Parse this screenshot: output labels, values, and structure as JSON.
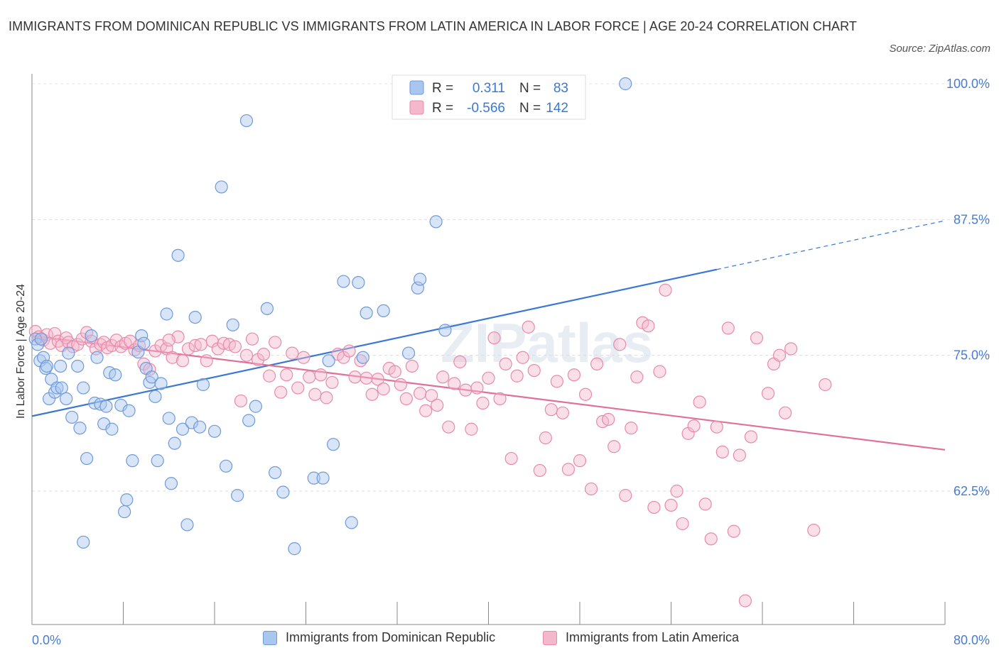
{
  "header": {
    "title": "IMMIGRANTS FROM DOMINICAN REPUBLIC VS IMMIGRANTS FROM LATIN AMERICA IN LABOR FORCE | AGE 20-24 CORRELATION CHART",
    "source": "Source: ZipAtlas.com"
  },
  "legend_top": {
    "rows": [
      {
        "r_label": "R =",
        "r_value": "0.311",
        "n_label": "N =",
        "n_value": "83"
      },
      {
        "r_label": "R =",
        "r_value": "-0.566",
        "n_label": "N =",
        "n_value": "142"
      }
    ]
  },
  "watermark": "ZIPatlas",
  "colors": {
    "blue_fill": "#a9c6ef",
    "blue_stroke": "#6f9ad8",
    "blue_line": "#3a78d4",
    "pink_fill": "#f4b8cd",
    "pink_stroke": "#e88aab",
    "pink_line": "#e0709a",
    "axis_text": "#4a7bd0"
  },
  "chart_data": {
    "type": "scatter",
    "title": "IMMIGRANTS FROM DOMINICAN REPUBLIC VS IMMIGRANTS FROM LATIN AMERICA IN LABOR FORCE | AGE 20-24 CORRELATION CHART",
    "xlabel": "",
    "ylabel": "In Labor Force | Age 20-24",
    "xlim": [
      0,
      80
    ],
    "ylim": [
      50,
      101
    ],
    "x_tick_labels": [
      "0.0%",
      "80.0%"
    ],
    "y_ticks": [
      62.5,
      75.0,
      87.5,
      100.0
    ],
    "y_tick_labels": [
      "62.5%",
      "75.0%",
      "87.5%",
      "100.0%"
    ],
    "grid": true,
    "legend_position": "bottom",
    "series": [
      {
        "name": "Immigrants from Dominican Republic",
        "color": "#a9c6ef",
        "r": 0.311,
        "n": 83,
        "trend": {
          "x_start": 0,
          "y_start": 69.4,
          "x_end": 60,
          "y_end": 82.9,
          "dashed_to_x": 80,
          "dashed_to_y": 87.4
        },
        "points": [
          [
            0.3,
            76.5
          ],
          [
            0.5,
            76.0
          ],
          [
            0.7,
            74.5
          ],
          [
            1.0,
            74.8
          ],
          [
            1.2,
            73.8
          ],
          [
            1.5,
            71.0
          ],
          [
            1.7,
            72.8
          ],
          [
            2.0,
            71.6
          ],
          [
            2.2,
            72.0
          ],
          [
            2.5,
            74.0
          ],
          [
            3.0,
            71.0
          ],
          [
            3.2,
            75.2
          ],
          [
            3.5,
            69.3
          ],
          [
            4.0,
            74.0
          ],
          [
            4.2,
            68.3
          ],
          [
            4.5,
            72.0
          ],
          [
            4.8,
            65.5
          ],
          [
            5.2,
            76.8
          ],
          [
            5.5,
            70.6
          ],
          [
            5.7,
            74.8
          ],
          [
            6.0,
            70.5
          ],
          [
            6.3,
            68.7
          ],
          [
            6.5,
            70.3
          ],
          [
            6.8,
            73.4
          ],
          [
            7.0,
            68.2
          ],
          [
            7.3,
            73.2
          ],
          [
            7.8,
            70.4
          ],
          [
            8.1,
            60.6
          ],
          [
            8.3,
            61.7
          ],
          [
            8.5,
            69.9
          ],
          [
            8.8,
            65.3
          ],
          [
            9.3,
            75.3
          ],
          [
            9.6,
            76.8
          ],
          [
            9.8,
            76.1
          ],
          [
            10.0,
            73.8
          ],
          [
            10.3,
            72.5
          ],
          [
            10.5,
            73.0
          ],
          [
            10.8,
            71.2
          ],
          [
            11.0,
            65.3
          ],
          [
            11.3,
            72.4
          ],
          [
            11.8,
            78.8
          ],
          [
            12.0,
            69.2
          ],
          [
            12.2,
            63.2
          ],
          [
            12.5,
            66.9
          ],
          [
            12.8,
            84.2
          ],
          [
            13.2,
            68.2
          ],
          [
            13.6,
            59.4
          ],
          [
            14.0,
            68.8
          ],
          [
            14.3,
            78.5
          ],
          [
            14.7,
            68.4
          ],
          [
            15.0,
            72.3
          ],
          [
            16.0,
            68.0
          ],
          [
            16.6,
            90.5
          ],
          [
            17.0,
            64.8
          ],
          [
            17.6,
            77.8
          ],
          [
            18.0,
            62.1
          ],
          [
            18.8,
            96.6
          ],
          [
            19.0,
            69.0
          ],
          [
            19.6,
            70.3
          ],
          [
            20.6,
            79.3
          ],
          [
            21.3,
            64.2
          ],
          [
            22.0,
            62.4
          ],
          [
            23.0,
            57.2
          ],
          [
            24.7,
            63.7
          ],
          [
            25.5,
            63.7
          ],
          [
            26.0,
            74.5
          ],
          [
            26.4,
            66.8
          ],
          [
            27.3,
            81.8
          ],
          [
            28.0,
            59.6
          ],
          [
            28.6,
            81.7
          ],
          [
            29.0,
            74.8
          ],
          [
            29.3,
            78.9
          ],
          [
            30.8,
            79.1
          ],
          [
            33.0,
            75.2
          ],
          [
            33.8,
            81.2
          ],
          [
            34.0,
            82.0
          ],
          [
            35.4,
            87.3
          ],
          [
            36.2,
            77.3
          ],
          [
            4.5,
            57.8
          ],
          [
            0.8,
            76.5
          ],
          [
            1.3,
            74.0
          ],
          [
            2.6,
            72.0
          ],
          [
            52.0,
            100.0
          ]
        ]
      },
      {
        "name": "Immigrants from Latin America",
        "color": "#f4b8cd",
        "r": -0.566,
        "n": 142,
        "trend": {
          "x_start": 0,
          "y_start": 76.8,
          "x_end": 80,
          "y_end": 66.3
        },
        "points": [
          [
            0.3,
            77.2
          ],
          [
            0.6,
            76.7
          ],
          [
            1.0,
            76.4
          ],
          [
            1.3,
            76.9
          ],
          [
            1.6,
            76.1
          ],
          [
            2.0,
            77.0
          ],
          [
            2.3,
            76.3
          ],
          [
            2.6,
            75.9
          ],
          [
            3.0,
            76.6
          ],
          [
            3.2,
            76.2
          ],
          [
            3.6,
            75.8
          ],
          [
            4.0,
            76.0
          ],
          [
            4.4,
            76.5
          ],
          [
            4.8,
            77.1
          ],
          [
            5.2,
            76.3
          ],
          [
            5.6,
            75.6
          ],
          [
            6.0,
            76.0
          ],
          [
            6.3,
            76.2
          ],
          [
            6.6,
            75.7
          ],
          [
            7.0,
            75.9
          ],
          [
            7.4,
            76.4
          ],
          [
            7.8,
            75.8
          ],
          [
            8.2,
            76.1
          ],
          [
            8.6,
            76.3
          ],
          [
            9.0,
            75.5
          ],
          [
            9.4,
            75.9
          ],
          [
            9.8,
            74.2
          ],
          [
            10.3,
            73.7
          ],
          [
            10.8,
            75.4
          ],
          [
            11.3,
            75.9
          ],
          [
            11.8,
            75.6
          ],
          [
            12.3,
            74.8
          ],
          [
            12.8,
            76.7
          ],
          [
            13.2,
            74.5
          ],
          [
            13.7,
            75.6
          ],
          [
            14.3,
            75.9
          ],
          [
            14.8,
            76.0
          ],
          [
            15.3,
            74.5
          ],
          [
            15.8,
            76.3
          ],
          [
            16.3,
            75.6
          ],
          [
            16.8,
            76.1
          ],
          [
            17.3,
            76.0
          ],
          [
            17.8,
            75.8
          ],
          [
            18.3,
            70.8
          ],
          [
            18.8,
            75.0
          ],
          [
            19.3,
            76.5
          ],
          [
            19.8,
            74.6
          ],
          [
            20.3,
            75.1
          ],
          [
            20.8,
            73.1
          ],
          [
            21.3,
            76.2
          ],
          [
            21.8,
            71.6
          ],
          [
            22.3,
            73.2
          ],
          [
            22.8,
            75.2
          ],
          [
            23.3,
            72.0
          ],
          [
            23.8,
            74.8
          ],
          [
            24.3,
            73.0
          ],
          [
            24.8,
            71.4
          ],
          [
            25.3,
            73.2
          ],
          [
            25.8,
            71.1
          ],
          [
            26.3,
            72.5
          ],
          [
            26.8,
            75.1
          ],
          [
            27.3,
            74.8
          ],
          [
            27.8,
            75.4
          ],
          [
            28.3,
            73.0
          ],
          [
            28.8,
            74.5
          ],
          [
            29.3,
            72.9
          ],
          [
            29.8,
            71.4
          ],
          [
            30.3,
            72.8
          ],
          [
            30.8,
            71.9
          ],
          [
            31.3,
            73.8
          ],
          [
            31.8,
            73.5
          ],
          [
            32.3,
            72.3
          ],
          [
            32.8,
            71.0
          ],
          [
            33.3,
            74.0
          ],
          [
            34.0,
            71.5
          ],
          [
            34.5,
            69.9
          ],
          [
            35.0,
            71.3
          ],
          [
            35.5,
            70.4
          ],
          [
            36.0,
            73.0
          ],
          [
            36.5,
            68.4
          ],
          [
            37.0,
            72.4
          ],
          [
            37.5,
            74.4
          ],
          [
            38.0,
            71.8
          ],
          [
            38.5,
            68.2
          ],
          [
            39.0,
            72.0
          ],
          [
            39.5,
            70.6
          ],
          [
            40.0,
            72.9
          ],
          [
            40.5,
            76.6
          ],
          [
            41.0,
            71.0
          ],
          [
            41.5,
            74.2
          ],
          [
            42.0,
            65.5
          ],
          [
            42.5,
            73.1
          ],
          [
            43.0,
            74.8
          ],
          [
            43.5,
            77.6
          ],
          [
            44.0,
            73.6
          ],
          [
            44.5,
            64.4
          ],
          [
            45.0,
            67.4
          ],
          [
            45.5,
            70.0
          ],
          [
            46.0,
            72.6
          ],
          [
            46.5,
            69.7
          ],
          [
            47.0,
            64.5
          ],
          [
            47.5,
            73.2
          ],
          [
            48.0,
            65.3
          ],
          [
            48.5,
            71.4
          ],
          [
            49.0,
            62.7
          ],
          [
            49.5,
            74.2
          ],
          [
            50.0,
            68.9
          ],
          [
            50.5,
            69.1
          ],
          [
            51.0,
            66.6
          ],
          [
            51.5,
            76.0
          ],
          [
            52.0,
            62.1
          ],
          [
            52.5,
            68.3
          ],
          [
            53.0,
            73.0
          ],
          [
            53.5,
            78.0
          ],
          [
            54.0,
            77.7
          ],
          [
            54.5,
            61.0
          ],
          [
            55.0,
            73.5
          ],
          [
            55.5,
            81.0
          ],
          [
            56.0,
            61.2
          ],
          [
            56.5,
            62.5
          ],
          [
            57.0,
            59.5
          ],
          [
            57.5,
            67.8
          ],
          [
            58.0,
            68.5
          ],
          [
            58.5,
            70.7
          ],
          [
            59.0,
            61.3
          ],
          [
            59.5,
            58.1
          ],
          [
            60.0,
            68.4
          ],
          [
            60.5,
            66.1
          ],
          [
            61.0,
            77.5
          ],
          [
            61.5,
            58.8
          ],
          [
            62.0,
            65.8
          ],
          [
            62.5,
            52.4
          ],
          [
            63.0,
            67.5
          ],
          [
            63.5,
            76.6
          ],
          [
            64.5,
            71.5
          ],
          [
            65.0,
            74.2
          ],
          [
            65.5,
            75.0
          ],
          [
            66.0,
            69.7
          ],
          [
            66.5,
            75.6
          ],
          [
            68.5,
            58.9
          ],
          [
            69.5,
            72.3
          ],
          [
            12.0,
            76.4
          ]
        ]
      }
    ]
  },
  "bottom_legend": {
    "items": [
      {
        "label": "Immigrants from Dominican Republic"
      },
      {
        "label": "Immigrants from Latin America"
      }
    ]
  }
}
